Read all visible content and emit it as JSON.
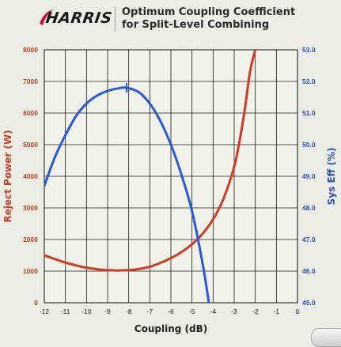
{
  "header": {
    "logo_text": "HARRIS",
    "title_line1": "Optimum Coupling Coefficient",
    "title_line2": "for Split-Level Combining"
  },
  "colors": {
    "left_axis": "#c8402a",
    "right_axis": "#2a4fc0",
    "reject_curve": "#d23a24",
    "eff_curve": "#2c58d8",
    "grid": "#1a1a1a",
    "plot_bg": "#f1f2ea"
  },
  "chart_data": {
    "type": "line",
    "title": "",
    "xlabel": "Coupling (dB)",
    "ylabel_left": "Reject Power (W)",
    "ylabel_right": "Sys Eff (%)",
    "xlim": [
      -12,
      0
    ],
    "ylim_left": [
      0,
      8000
    ],
    "ylim_right": [
      45.0,
      53.0
    ],
    "x_ticks": [
      "-12",
      "-11",
      "-10",
      "-9",
      "-8",
      "-7",
      "-6",
      "-5",
      "-4",
      "-3",
      "-2",
      "-1",
      "0"
    ],
    "y_ticks_left": [
      "0",
      "1000",
      "2000",
      "3000",
      "4000",
      "5000",
      "6000",
      "7000",
      "8000"
    ],
    "y_ticks_right": [
      "45.0",
      "46.0",
      "47.0",
      "48.0",
      "49.0",
      "50.0",
      "51.0",
      "52.0",
      "53.0"
    ],
    "grid": true,
    "series": [
      {
        "axis": "left",
        "x": [
          -12,
          -11.5,
          -11,
          -10.5,
          -10,
          -9.5,
          -9,
          -8.5,
          -8,
          -7.5,
          -7,
          -6.5,
          -6,
          -5.5,
          -5,
          -4.5,
          -4,
          -3.5,
          -3,
          -2.75,
          -2.5,
          -2.25,
          -2
        ],
        "values": [
          1500,
          1380,
          1270,
          1180,
          1110,
          1060,
          1030,
          1020,
          1030,
          1070,
          1140,
          1260,
          1410,
          1600,
          1850,
          2180,
          2640,
          3300,
          4300,
          5100,
          6100,
          7300,
          8000
        ]
      },
      {
        "axis": "right",
        "x": [
          -12,
          -11.5,
          -11,
          -10.5,
          -10,
          -9.5,
          -9,
          -8.5,
          -8.1,
          -7.5,
          -7,
          -6.5,
          -6,
          -5.5,
          -5,
          -4.5,
          -4.2
        ],
        "values": [
          48.7,
          49.6,
          50.3,
          50.9,
          51.3,
          51.55,
          51.7,
          51.78,
          51.8,
          51.65,
          51.3,
          50.75,
          50.0,
          49.05,
          47.9,
          46.25,
          45.0
        ]
      }
    ],
    "annotations": [
      {
        "type": "marker",
        "series": 1,
        "x": -8.1,
        "y": 51.8
      }
    ]
  }
}
